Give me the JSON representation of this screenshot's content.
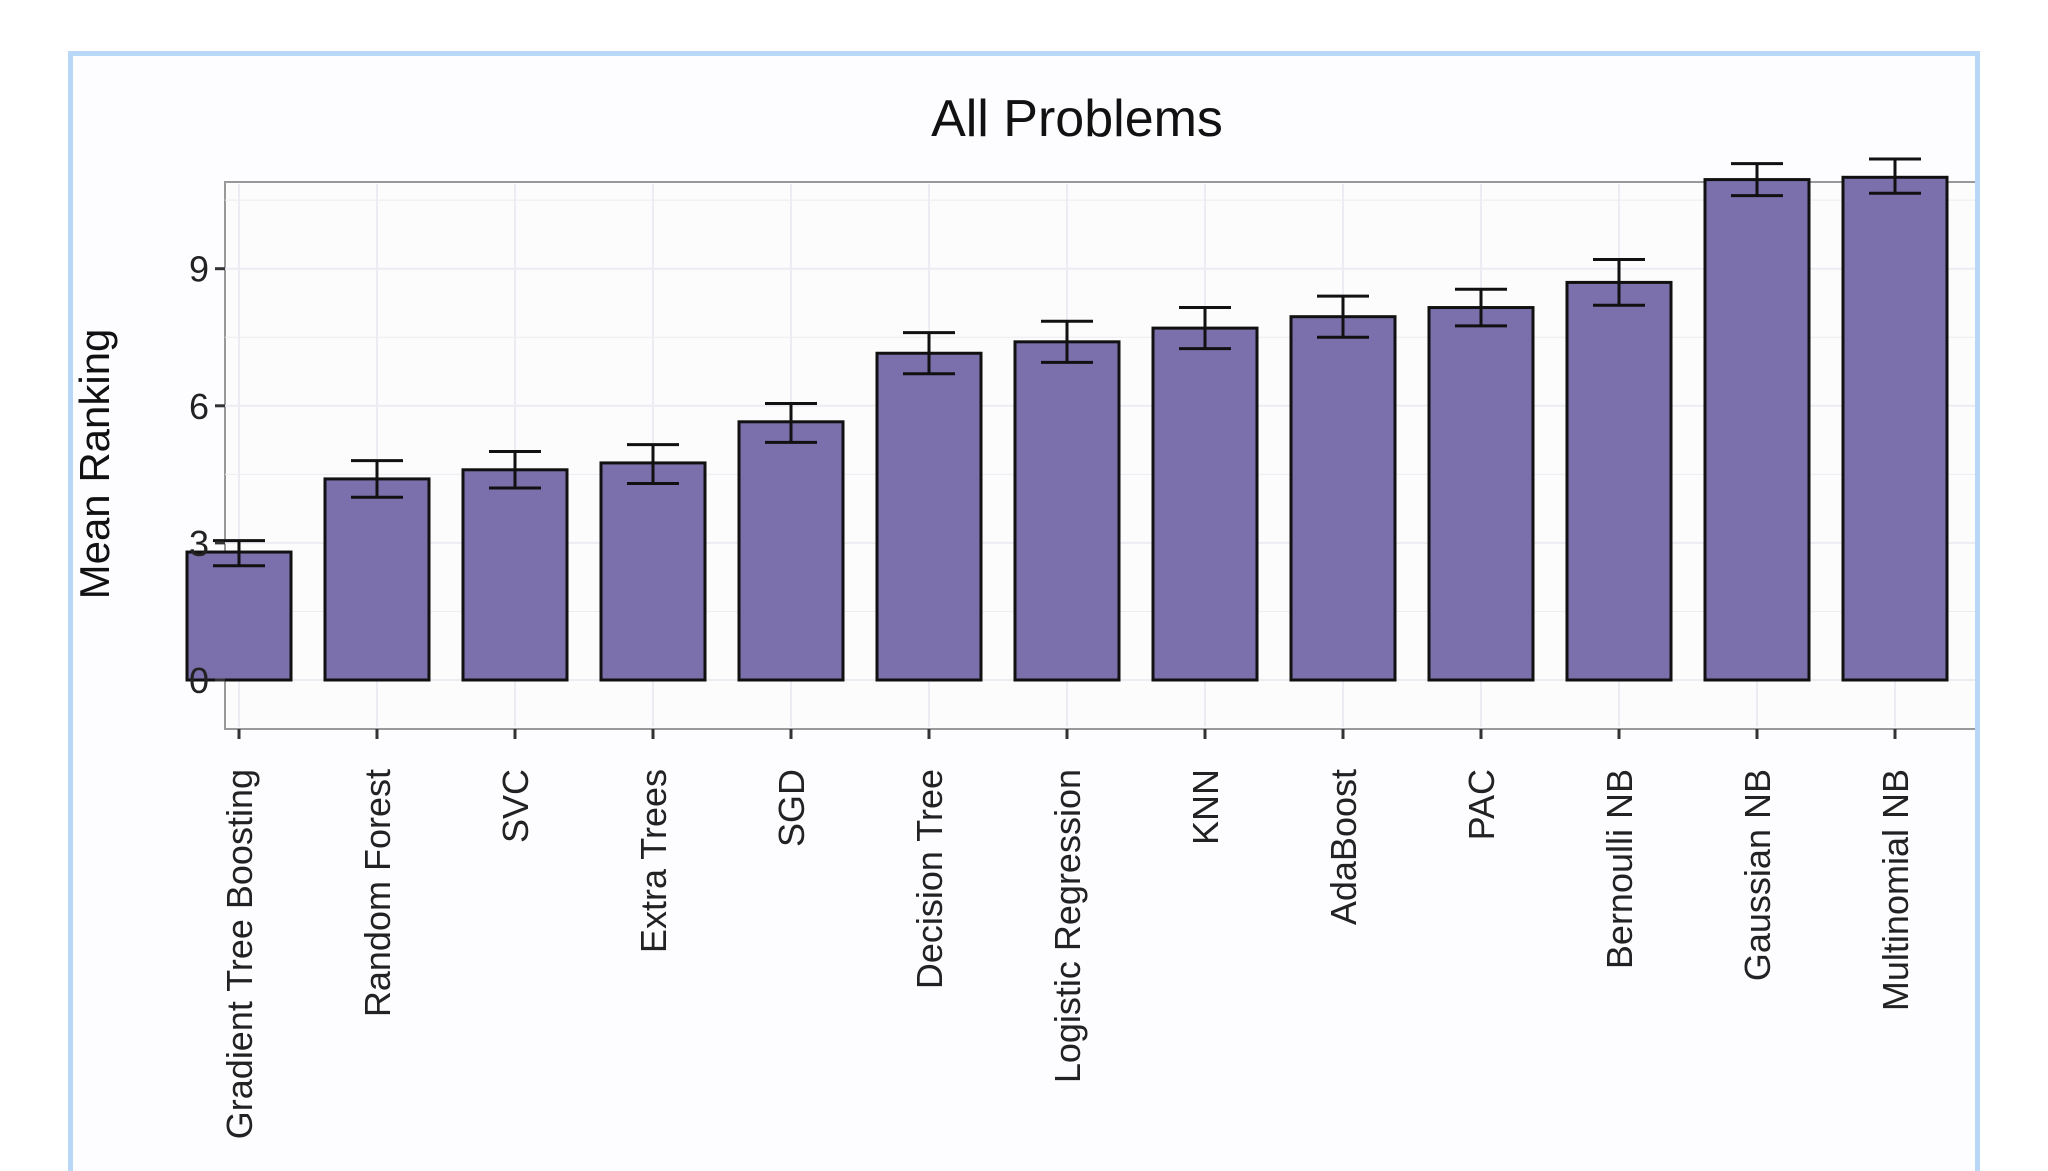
{
  "chart_data": {
    "type": "bar",
    "title": "All Problems",
    "xlabel": "",
    "ylabel": "Mean Ranking",
    "ylim": [
      0,
      12
    ],
    "yticks": [
      0,
      3,
      6,
      9
    ],
    "grid": true,
    "categories": [
      "Gradient Tree Boosting",
      "Random Forest",
      "SVC",
      "Extra Trees",
      "SGD",
      "Decision Tree",
      "Logistic Regression",
      "KNN",
      "AdaBoost",
      "PAC",
      "Bernoulli NB",
      "Gaussian NB",
      "Multinomial NB"
    ],
    "values": [
      2.8,
      4.4,
      4.6,
      4.75,
      5.65,
      7.15,
      7.4,
      7.7,
      7.95,
      8.15,
      8.7,
      10.95,
      11.0
    ],
    "error_low": [
      2.5,
      4.0,
      4.2,
      4.3,
      5.2,
      6.7,
      6.95,
      7.25,
      7.5,
      7.75,
      8.2,
      10.6,
      10.65
    ],
    "error_high": [
      3.05,
      4.8,
      5.0,
      5.15,
      6.05,
      7.6,
      7.85,
      8.15,
      8.4,
      8.55,
      9.2,
      11.3,
      11.4
    ],
    "colors": {
      "bar_fill": "#7b70ab",
      "bar_stroke": "#111111",
      "panel_background": "#fcfcfd",
      "gridline": "#ececf2",
      "frame_border": "#b9d8f7"
    }
  }
}
